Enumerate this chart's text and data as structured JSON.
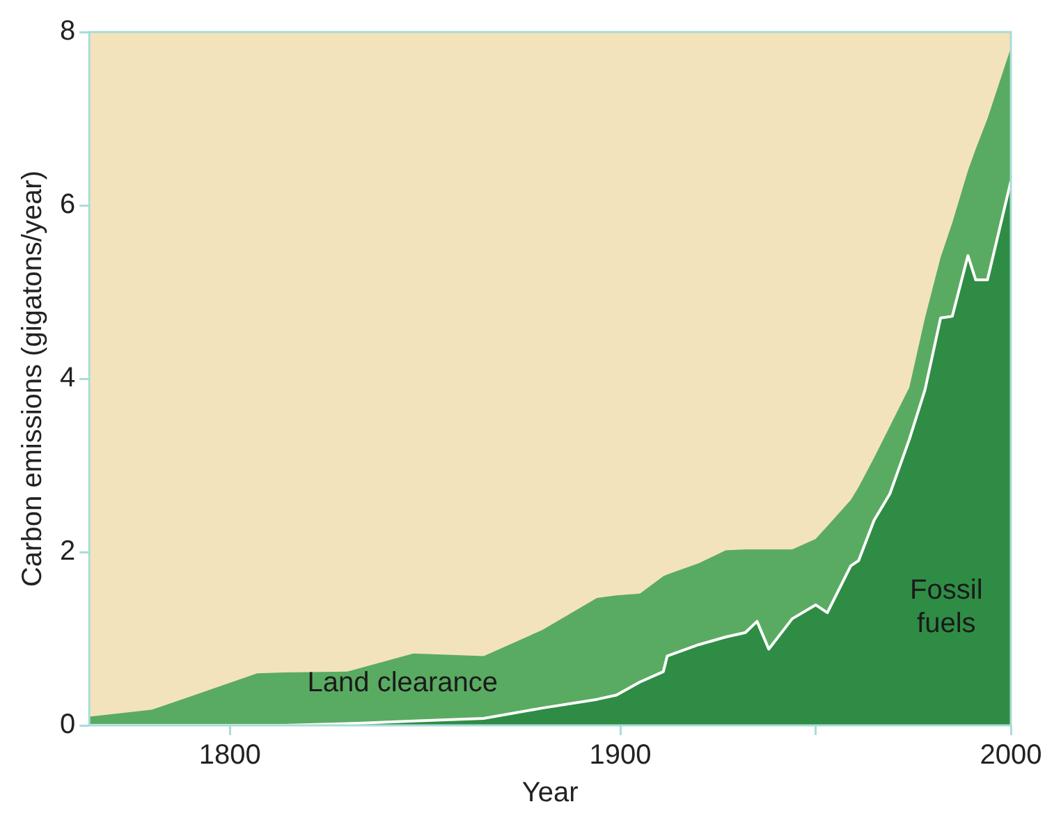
{
  "chart_data": {
    "type": "area",
    "xlabel": "Year",
    "ylabel": "Carbon emissions (gigatons/year)",
    "x": [
      1764,
      1780,
      1807,
      1814,
      1830,
      1847,
      1865,
      1880,
      1894,
      1899,
      1905,
      1911,
      1912,
      1920,
      1927,
      1932,
      1935,
      1938,
      1944,
      1950,
      1953,
      1959,
      1961,
      1965,
      1969,
      1974,
      1978,
      1982,
      1985,
      1989,
      1991,
      1994,
      2000
    ],
    "stacked": true,
    "series": [
      {
        "name": "Fossil fuels",
        "color": "#2f8c45",
        "values": [
          0,
          0,
          0,
          0,
          0.02,
          0.05,
          0.08,
          0.2,
          0.3,
          0.35,
          0.5,
          0.62,
          0.8,
          0.93,
          1.02,
          1.07,
          1.2,
          0.88,
          1.23,
          1.39,
          1.3,
          1.84,
          1.9,
          2.37,
          2.67,
          3.3,
          3.87,
          4.7,
          4.72,
          5.42,
          5.14,
          5.14,
          6.28
        ]
      },
      {
        "name": "Land clearance",
        "color": "#5aab62",
        "values": [
          0.1,
          0.18,
          0.6,
          0.61,
          0.6,
          0.78,
          0.72,
          0.9,
          1.17,
          1.15,
          1.02,
          1.1,
          0.94,
          0.94,
          1.0,
          0.96,
          0.83,
          1.15,
          0.8,
          0.76,
          1.0,
          0.76,
          0.85,
          0.72,
          0.78,
          0.6,
          0.83,
          0.7,
          1.08,
          0.98,
          1.51,
          1.86,
          1.54
        ]
      }
    ],
    "xlim": [
      1764,
      2000
    ],
    "xticks": [
      1800,
      1900,
      {
        "value": 1950,
        "label": null
      },
      2000
    ],
    "ylim": [
      0,
      8
    ],
    "yticks": [
      0,
      2,
      4,
      6,
      8
    ],
    "grid": false,
    "legend": false
  }
}
